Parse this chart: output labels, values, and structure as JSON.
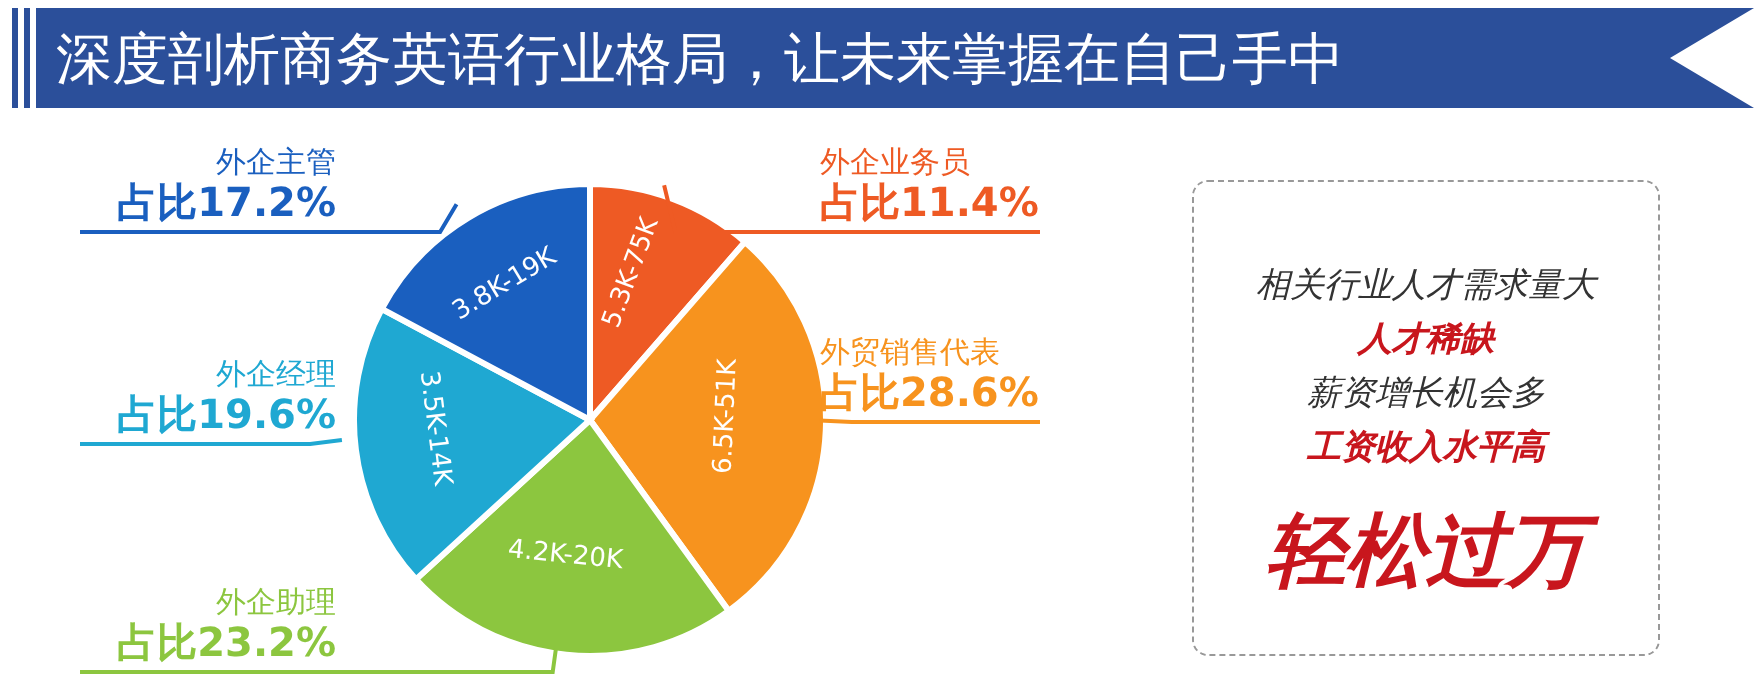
{
  "chart_data": {
    "type": "pie",
    "title": "深度剖析商务英语行业格局，让未来掌握在自己手中",
    "categories": [
      "外企业务员",
      "外贸销售代表",
      "外企助理",
      "外企经理",
      "外企主管"
    ],
    "values": [
      11.4,
      28.6,
      23.2,
      19.6,
      17.2
    ],
    "colors": [
      "#ee5a24",
      "#f7931e",
      "#8cc63f",
      "#1fa8d2",
      "#1a5fbf"
    ],
    "value_labels": [
      "占比11.4%",
      "占比28.6%",
      "占比23.2%",
      "占比19.6%",
      "占比17.2%"
    ],
    "annotations": [
      {
        "text": "5.3K-75K",
        "x": "外企业务员"
      },
      {
        "text": "6.5K-51K",
        "x": "外贸销售代表"
      },
      {
        "text": "4.2K-20K",
        "x": "外企助理"
      },
      {
        "text": "3.5K-14K",
        "x": "外企经理"
      },
      {
        "text": "3.8K-19K",
        "x": "外企主管"
      },
      "相关行业人才需求量大",
      "人才稀缺",
      "薪资增长机会多",
      "工资收入水平高",
      "轻松过万"
    ],
    "legend": false
  }
}
